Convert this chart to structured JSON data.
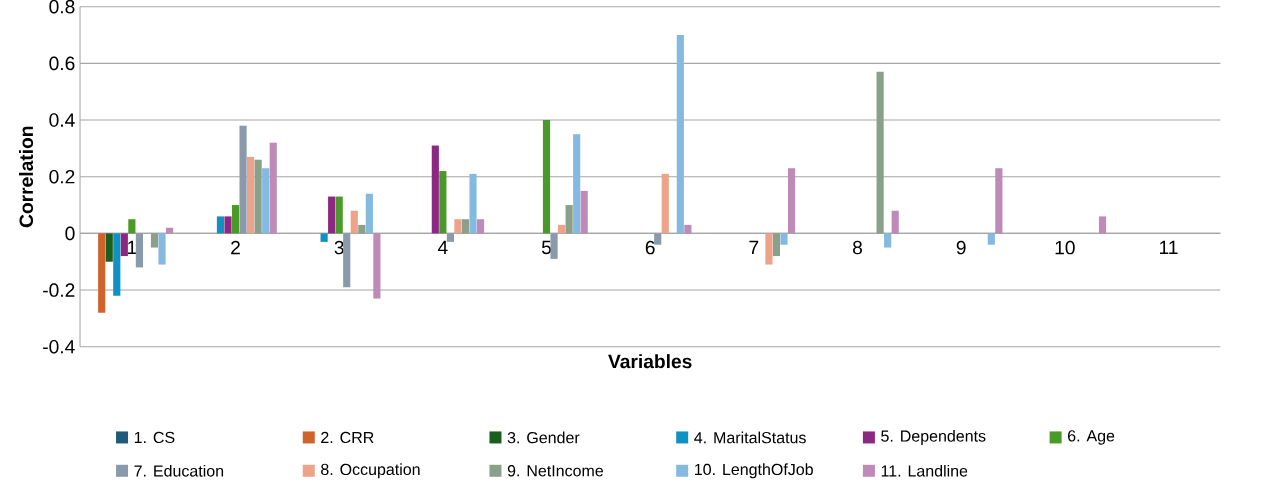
{
  "chart_data": {
    "type": "bar",
    "xlabel": "Variables",
    "ylabel": "Correlation",
    "categories": [
      "1",
      "2",
      "3",
      "4",
      "5",
      "6",
      "7",
      "8",
      "9",
      "10",
      "11"
    ],
    "ylim": [
      -0.4,
      0.8
    ],
    "yticks": [
      -0.4,
      -0.2,
      0,
      0.2,
      0.4,
      0.6,
      0.8
    ],
    "grid": "y",
    "legend": "bottom",
    "series": [
      {
        "name": "1. CS",
        "color": "#1f5a7a",
        "values": [
          null,
          null,
          null,
          null,
          null,
          null,
          null,
          null,
          null,
          null,
          null
        ]
      },
      {
        "name": "2. CRR",
        "color": "#d0622b",
        "values": [
          -0.28,
          null,
          null,
          null,
          null,
          null,
          null,
          null,
          null,
          null,
          null
        ]
      },
      {
        "name": "3. Gender",
        "color": "#1a5e20",
        "values": [
          -0.1,
          0,
          null,
          null,
          null,
          null,
          null,
          null,
          null,
          null,
          null
        ]
      },
      {
        "name": "4. MaritalStatus",
        "color": "#0f91c4",
        "values": [
          -0.22,
          0.06,
          -0.03,
          null,
          null,
          null,
          null,
          null,
          null,
          null,
          null
        ]
      },
      {
        "name": "5. Dependents",
        "color": "#8c2882",
        "values": [
          -0.08,
          0.06,
          0.13,
          0.31,
          null,
          null,
          null,
          null,
          null,
          null,
          null
        ]
      },
      {
        "name": "6. Age",
        "color": "#4a9a2a",
        "values": [
          0.05,
          0.1,
          0.13,
          0.22,
          0.4,
          null,
          null,
          null,
          null,
          null,
          null
        ]
      },
      {
        "name": "7. Education",
        "color": "#8a9aaa",
        "values": [
          -0.12,
          0.38,
          -0.19,
          -0.03,
          -0.09,
          -0.04,
          null,
          null,
          null,
          null,
          null
        ]
      },
      {
        "name": "8. Occupation",
        "color": "#eda38a",
        "values": [
          0,
          0.27,
          0.08,
          0.05,
          0.03,
          0.21,
          -0.11,
          null,
          null,
          null,
          null
        ]
      },
      {
        "name": "9. NetIncome",
        "color": "#8aa088",
        "values": [
          -0.05,
          0.26,
          0.03,
          0.05,
          0.1,
          0,
          -0.08,
          0.57,
          null,
          null,
          null
        ]
      },
      {
        "name": "10. LengthOfJob",
        "color": "#85bae0",
        "values": [
          -0.11,
          0.23,
          0.14,
          0.21,
          0.35,
          0.7,
          -0.04,
          -0.05,
          -0.04,
          null,
          null
        ]
      },
      {
        "name": "11. Landline",
        "color": "#c08ab8",
        "values": [
          0.02,
          0.32,
          -0.23,
          0.05,
          0.15,
          0.03,
          0.23,
          0.08,
          0.23,
          0.06,
          null
        ]
      }
    ]
  }
}
